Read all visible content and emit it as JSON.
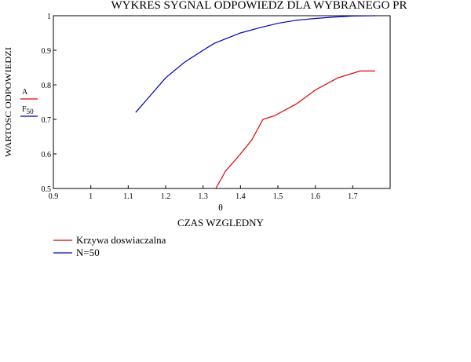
{
  "chart_data": {
    "type": "line",
    "title": "WYKRES SYGNAL ODPOWIEDZ DLA WYBRANEGO PR",
    "y_label": "WARTOSC ODPOWIEDZI",
    "x_symbol": "θ",
    "x_label": "CZAS WZGLEDNY",
    "xlim": [
      0.9,
      1.8
    ],
    "ylim": [
      0.5,
      1
    ],
    "xticks": [
      0.9,
      1,
      1.1,
      1.2,
      1.3,
      1.4,
      1.5,
      1.6,
      1.7
    ],
    "yticks": [
      0.5,
      0.6,
      0.7,
      0.8,
      0.9,
      1
    ],
    "series": [
      {
        "name": "Krzywa doswiaczalna",
        "expression": "A",
        "color": "#e00000",
        "x": [
          1.334,
          1.36,
          1.4,
          1.43,
          1.46,
          1.49,
          1.55,
          1.6,
          1.66,
          1.72,
          1.76
        ],
        "values": [
          0.5,
          0.55,
          0.6,
          0.64,
          0.7,
          0.71,
          0.745,
          0.785,
          0.82,
          0.84,
          0.84
        ]
      },
      {
        "name": "N=50",
        "expression": "F",
        "expression_subscript": "50",
        "color": "#0000c0",
        "x": [
          1.12,
          1.2,
          1.25,
          1.3,
          1.33,
          1.4,
          1.45,
          1.5,
          1.55,
          1.6,
          1.65,
          1.7,
          1.76
        ],
        "values": [
          0.72,
          0.82,
          0.865,
          0.9,
          0.92,
          0.95,
          0.965,
          0.978,
          0.987,
          0.992,
          0.996,
          0.999,
          1.0
        ]
      }
    ]
  }
}
